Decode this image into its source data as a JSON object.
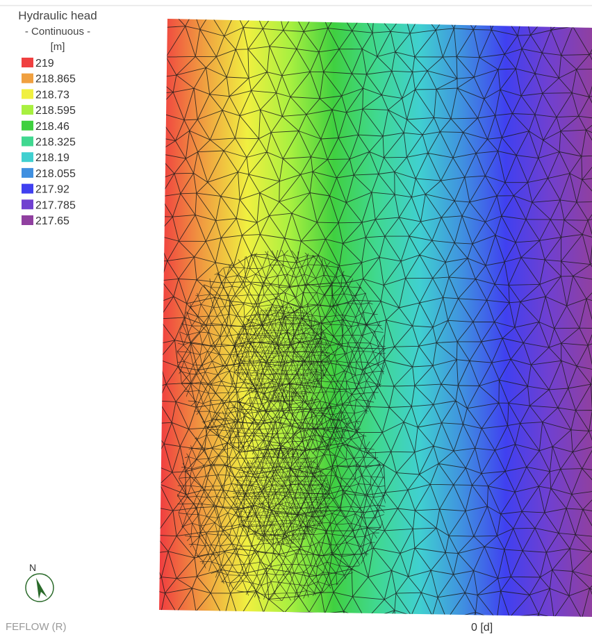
{
  "legend": {
    "title": "Hydraulic head",
    "mode": "- Continuous -",
    "unit": "[m]",
    "items": [
      {
        "value": 219,
        "color": "#f04040"
      },
      {
        "value": 218.865,
        "color": "#f0a040"
      },
      {
        "value": 218.73,
        "color": "#f0f040"
      },
      {
        "value": 218.595,
        "color": "#a8f040"
      },
      {
        "value": 218.46,
        "color": "#40d040"
      },
      {
        "value": 218.325,
        "color": "#40d890"
      },
      {
        "value": 218.19,
        "color": "#40d0d0"
      },
      {
        "value": 218.055,
        "color": "#4090e0"
      },
      {
        "value": 217.92,
        "color": "#4040f0"
      },
      {
        "value": 217.785,
        "color": "#7040d0"
      },
      {
        "value": 217.65,
        "color": "#9040a0"
      }
    ]
  },
  "compass": "N",
  "footer": {
    "brand": "FEFLOW (R)",
    "time": "0 [d]"
  }
}
